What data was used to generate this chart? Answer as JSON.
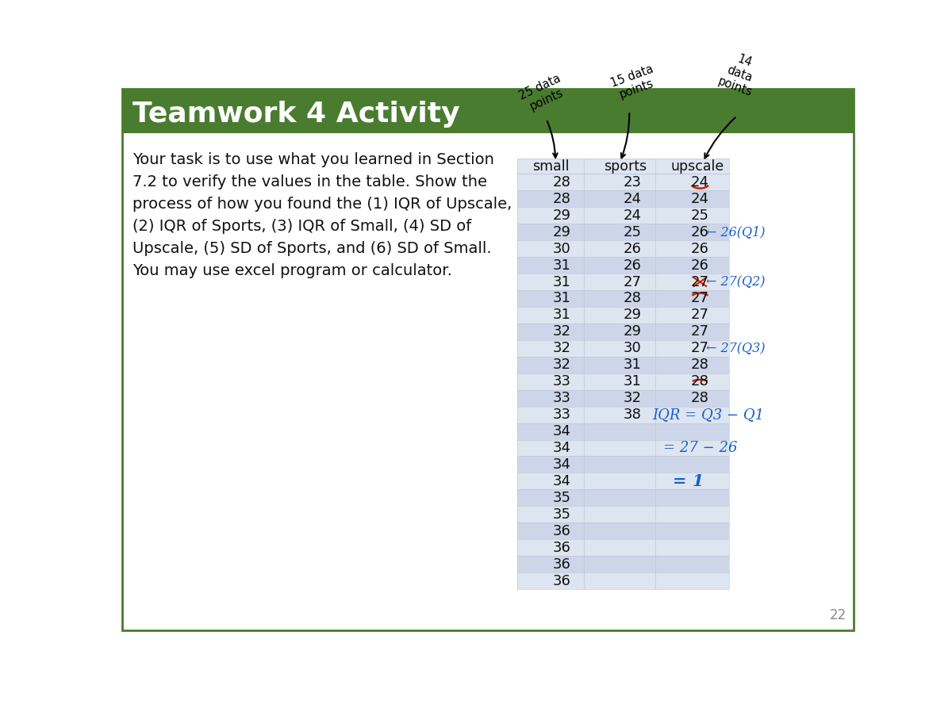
{
  "title": "Teamwork 4 Activity",
  "title_bg": "#4a7c2f",
  "title_color": "#ffffff",
  "body_text": "Your task is to use what you learned in Section\n7.2 to verify the values in the table. Show the\nprocess of how you found the (1) IQR of Upscale,\n(2) IQR of Sports, (3) IQR of Small, (4) SD of\nUpscale, (5) SD of Sports, and (6) SD of Small.\nYou may use excel program or calculator.",
  "col_headers": [
    "small",
    "sports",
    "upscale"
  ],
  "small_data": [
    28,
    28,
    29,
    29,
    30,
    31,
    31,
    31,
    31,
    32,
    32,
    32,
    33,
    33,
    33,
    34,
    34,
    34,
    34,
    35,
    35,
    36,
    36,
    36,
    36
  ],
  "sports_data": [
    23,
    24,
    24,
    25,
    26,
    26,
    27,
    28,
    29,
    29,
    30,
    31,
    31,
    32,
    38,
    "",
    "",
    "",
    "",
    "",
    "",
    "",
    "",
    "",
    ""
  ],
  "upscale_data": [
    24,
    24,
    25,
    26,
    26,
    26,
    27,
    27,
    27,
    27,
    27,
    28,
    28,
    28,
    "",
    "",
    "",
    "",
    "",
    "",
    "",
    "",
    "",
    "",
    ""
  ],
  "table_row_bg_light": "#dde5f0",
  "table_row_bg_dark": "#ccd6e8",
  "slide_bg": "#ffffff",
  "border_color": "#4a7c2f",
  "page_num": "22",
  "blue_color": "#1a5fcc",
  "red_color": "#cc2200"
}
